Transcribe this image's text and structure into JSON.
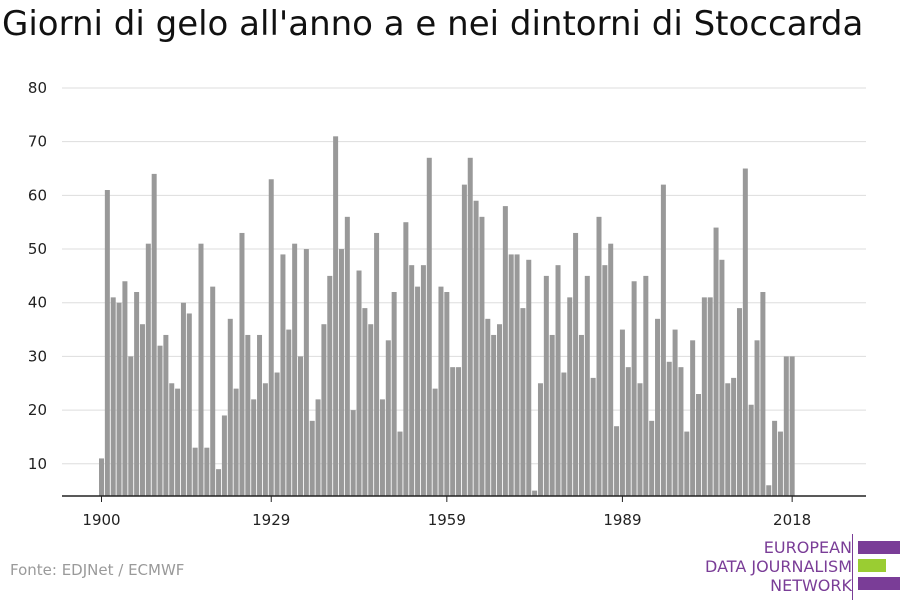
{
  "title": "Giorni di gelo all'anno a e nei dintorni di Stoccarda",
  "source": "Fonte: EDJNet / ECMWF",
  "logo": {
    "line1": "EUROPEAN",
    "line2": "DATA JOURNALISM",
    "line3": "NETWORK"
  },
  "colors": {
    "bar": "#999999",
    "grid": "#dddddd",
    "axis": "#222222",
    "logo_purple": "#7a3d97",
    "logo_green": "#9acd32"
  },
  "chart_data": {
    "type": "bar",
    "title": "Giorni di gelo all'anno a e nei dintorni di Stoccarda",
    "xlabel": "",
    "ylabel": "",
    "x_start": 1900,
    "x_tick_labels": [
      "1900",
      "1929",
      "1959",
      "1989",
      "2018"
    ],
    "y_ticks": [
      10,
      20,
      30,
      40,
      50,
      60,
      70,
      80
    ],
    "ylim": [
      4,
      80
    ],
    "grid": true,
    "legend": "none",
    "x": [
      1900,
      1901,
      1902,
      1903,
      1904,
      1905,
      1906,
      1907,
      1908,
      1909,
      1910,
      1911,
      1912,
      1913,
      1914,
      1915,
      1916,
      1917,
      1918,
      1919,
      1920,
      1921,
      1922,
      1923,
      1924,
      1925,
      1926,
      1927,
      1928,
      1929,
      1930,
      1931,
      1932,
      1933,
      1934,
      1935,
      1936,
      1937,
      1938,
      1939,
      1940,
      1941,
      1942,
      1943,
      1944,
      1945,
      1946,
      1947,
      1948,
      1949,
      1950,
      1951,
      1952,
      1953,
      1954,
      1955,
      1956,
      1957,
      1958,
      1959,
      1960,
      1961,
      1962,
      1963,
      1964,
      1965,
      1966,
      1967,
      1968,
      1969,
      1970,
      1971,
      1972,
      1973,
      1974,
      1975,
      1976,
      1977,
      1978,
      1979,
      1980,
      1981,
      1982,
      1983,
      1984,
      1985,
      1986,
      1987,
      1988,
      1989,
      1990,
      1991,
      1992,
      1993,
      1994,
      1995,
      1996,
      1997,
      1998,
      1999,
      2000,
      2001,
      2002,
      2003,
      2004,
      2005,
      2006,
      2007,
      2008,
      2009,
      2010,
      2011,
      2012,
      2013,
      2014,
      2015,
      2016,
      2017,
      2018
    ],
    "values": [
      11,
      61,
      41,
      40,
      44,
      30,
      42,
      36,
      51,
      64,
      32,
      34,
      25,
      24,
      40,
      38,
      13,
      51,
      13,
      43,
      9,
      19,
      37,
      24,
      53,
      34,
      22,
      34,
      25,
      63,
      27,
      49,
      35,
      51,
      30,
      50,
      18,
      22,
      36,
      45,
      71,
      50,
      56,
      20,
      46,
      39,
      36,
      53,
      22,
      33,
      42,
      16,
      55,
      47,
      43,
      47,
      67,
      24,
      43,
      42,
      28,
      28,
      62,
      67,
      59,
      56,
      37,
      34,
      36,
      58,
      49,
      49,
      39,
      48,
      5,
      25,
      45,
      34,
      47,
      27,
      41,
      53,
      34,
      45,
      26,
      56,
      47,
      51,
      17,
      35,
      28,
      44,
      25,
      45,
      18,
      37,
      62,
      29,
      35,
      28,
      16,
      33,
      23,
      41,
      41,
      54,
      48,
      25,
      26,
      39,
      65,
      21,
      33,
      42,
      6,
      18,
      16,
      30,
      30
    ]
  }
}
